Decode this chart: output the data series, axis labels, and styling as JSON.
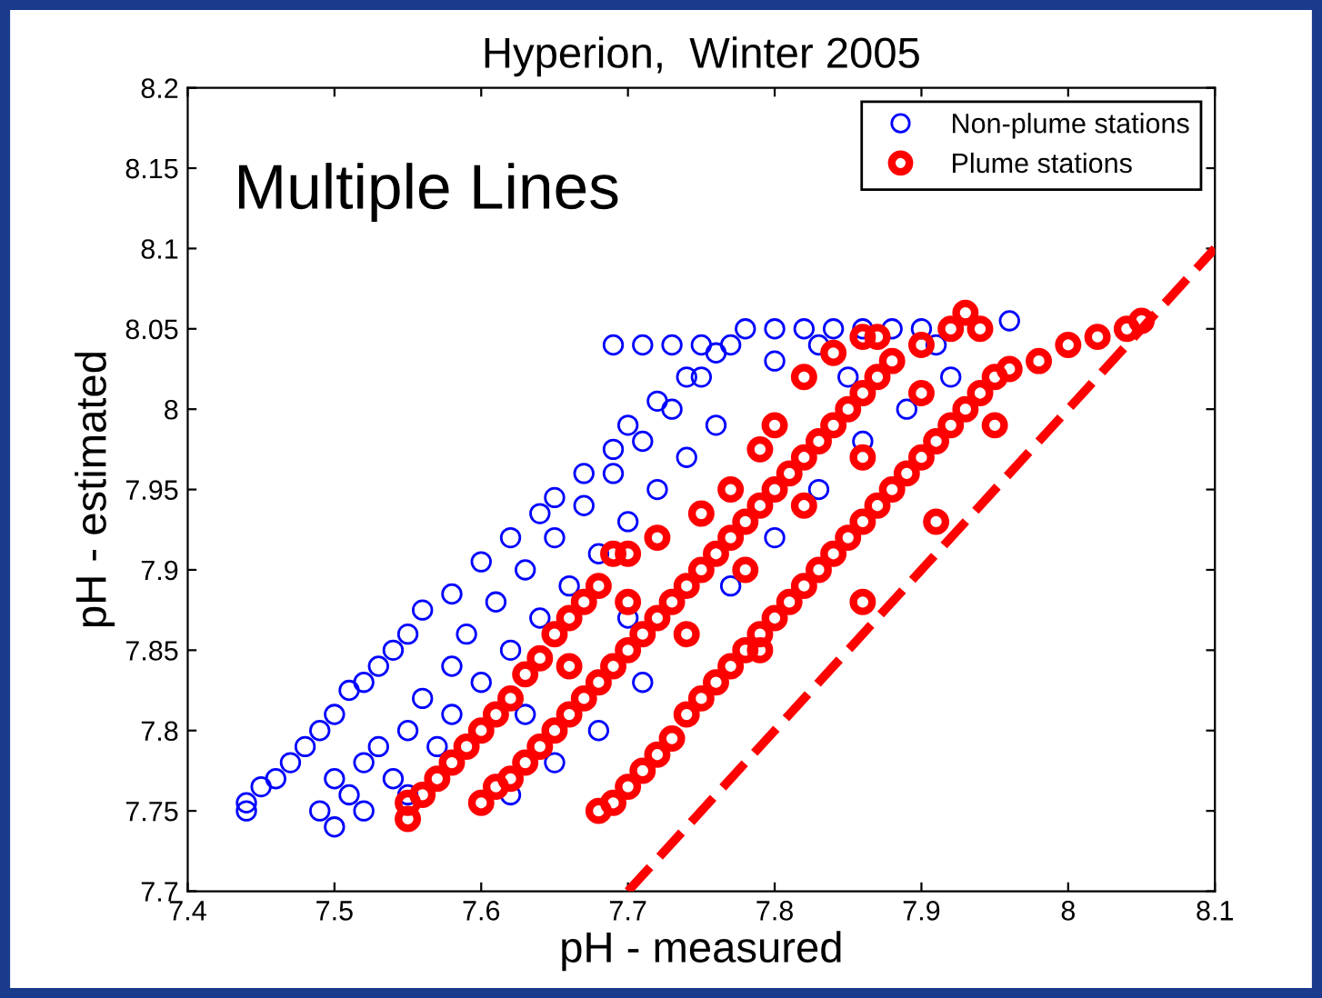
{
  "chart_data": {
    "type": "scatter",
    "title": "Hyperion,  Winter 2005",
    "xlabel": "pH - measured",
    "ylabel": "pH - estimated",
    "annotations": [
      "Multiple Lines"
    ],
    "xlim": [
      7.4,
      8.1
    ],
    "xticks": [
      7.4,
      7.5,
      7.6,
      7.7,
      7.8,
      7.9,
      8,
      8.1
    ],
    "ylim": [
      7.7,
      8.2
    ],
    "yticks": [
      7.7,
      7.75,
      7.8,
      7.85,
      7.9,
      7.95,
      8,
      8.05,
      8.1,
      8.15,
      8.2
    ],
    "grid": false,
    "legend": "top right",
    "marker": "circle",
    "series": [
      {
        "name": "Non-plume stations",
        "color": "#0000ff",
        "x": [
          7.44,
          7.44,
          7.45,
          7.46,
          7.47,
          7.48,
          7.49,
          7.5,
          7.51,
          7.52,
          7.53,
          7.54,
          7.55,
          7.56,
          7.58,
          7.6,
          7.62,
          7.64,
          7.65,
          7.67,
          7.69,
          7.7,
          7.72,
          7.74,
          7.76,
          7.69,
          7.71,
          7.73,
          7.75,
          7.49,
          7.5,
          7.5,
          7.51,
          7.52,
          7.52,
          7.53,
          7.54,
          7.55,
          7.55,
          7.56,
          7.57,
          7.58,
          7.58,
          7.59,
          7.6,
          7.61,
          7.62,
          7.63,
          7.64,
          7.65,
          7.66,
          7.67,
          7.68,
          7.69,
          7.7,
          7.71,
          7.72,
          7.73,
          7.74,
          7.75,
          7.76,
          7.77,
          7.78,
          7.8,
          7.82,
          7.84,
          7.86,
          7.88,
          7.9,
          7.96,
          7.8,
          7.83,
          7.85,
          7.91,
          7.62,
          7.65,
          7.68,
          7.71,
          7.77,
          7.8,
          7.83,
          7.86,
          7.89,
          7.92,
          7.63,
          7.7
        ],
        "values": [
          7.75,
          7.755,
          7.765,
          7.77,
          7.78,
          7.79,
          7.8,
          7.81,
          7.825,
          7.83,
          7.84,
          7.85,
          7.86,
          7.875,
          7.885,
          7.905,
          7.92,
          7.935,
          7.945,
          7.96,
          7.975,
          7.99,
          8.005,
          8.02,
          8.035,
          8.04,
          8.04,
          8.04,
          8.04,
          7.75,
          7.74,
          7.77,
          7.76,
          7.78,
          7.75,
          7.79,
          7.77,
          7.8,
          7.76,
          7.82,
          7.79,
          7.84,
          7.81,
          7.86,
          7.83,
          7.88,
          7.85,
          7.9,
          7.87,
          7.92,
          7.89,
          7.94,
          7.91,
          7.96,
          7.93,
          7.98,
          7.95,
          8.0,
          7.97,
          8.02,
          7.99,
          8.04,
          8.05,
          8.05,
          8.05,
          8.05,
          8.05,
          8.05,
          8.05,
          8.055,
          8.03,
          8.04,
          8.02,
          8.04,
          7.76,
          7.78,
          7.8,
          7.83,
          7.89,
          7.92,
          7.95,
          7.98,
          8.0,
          8.02,
          7.81,
          7.87
        ]
      },
      {
        "name": "Plume stations",
        "color": "#ff0000",
        "x": [
          7.55,
          7.55,
          7.56,
          7.57,
          7.58,
          7.59,
          7.6,
          7.61,
          7.62,
          7.63,
          7.64,
          7.65,
          7.66,
          7.67,
          7.68,
          7.69,
          7.7,
          7.72,
          7.75,
          7.77,
          7.79,
          7.8,
          7.82,
          7.84,
          7.86,
          7.87,
          7.6,
          7.61,
          7.62,
          7.63,
          7.64,
          7.65,
          7.66,
          7.67,
          7.68,
          7.69,
          7.7,
          7.71,
          7.72,
          7.73,
          7.74,
          7.75,
          7.76,
          7.77,
          7.78,
          7.79,
          7.8,
          7.81,
          7.82,
          7.83,
          7.84,
          7.85,
          7.86,
          7.87,
          7.88,
          7.9,
          7.92,
          7.93,
          7.94,
          7.7,
          7.74,
          7.78,
          7.82,
          7.86,
          7.9,
          7.66,
          7.68,
          7.69,
          7.7,
          7.71,
          7.72,
          7.73,
          7.74,
          7.75,
          7.76,
          7.77,
          7.78,
          7.79,
          7.8,
          7.81,
          7.82,
          7.83,
          7.84,
          7.85,
          7.86,
          7.87,
          7.88,
          7.89,
          7.9,
          7.91,
          7.92,
          7.93,
          7.94,
          7.95,
          7.96,
          7.98,
          8.0,
          8.02,
          8.04,
          8.05,
          7.86,
          7.79,
          7.91,
          7.95
        ],
        "values": [
          7.745,
          7.755,
          7.76,
          7.77,
          7.78,
          7.79,
          7.8,
          7.81,
          7.82,
          7.835,
          7.845,
          7.86,
          7.87,
          7.88,
          7.89,
          7.91,
          7.91,
          7.92,
          7.935,
          7.95,
          7.975,
          7.99,
          8.02,
          8.035,
          8.045,
          8.045,
          7.755,
          7.765,
          7.77,
          7.78,
          7.79,
          7.8,
          7.81,
          7.82,
          7.83,
          7.84,
          7.85,
          7.86,
          7.87,
          7.88,
          7.89,
          7.9,
          7.91,
          7.92,
          7.93,
          7.94,
          7.95,
          7.96,
          7.97,
          7.98,
          7.99,
          8.0,
          8.01,
          8.02,
          8.03,
          8.04,
          8.05,
          8.06,
          8.05,
          7.88,
          7.86,
          7.9,
          7.94,
          7.97,
          8.01,
          7.84,
          7.75,
          7.755,
          7.765,
          7.775,
          7.785,
          7.795,
          7.81,
          7.82,
          7.83,
          7.84,
          7.85,
          7.86,
          7.87,
          7.88,
          7.89,
          7.9,
          7.91,
          7.92,
          7.93,
          7.94,
          7.95,
          7.96,
          7.97,
          7.98,
          7.99,
          8.0,
          8.01,
          8.02,
          8.025,
          8.03,
          8.04,
          8.045,
          8.05,
          8.055,
          7.88,
          7.85,
          7.93,
          7.99
        ]
      },
      {
        "type": "line",
        "color": "#ff0000",
        "marker": "none",
        "line_style": "dashed",
        "x": [
          7.7,
          8.1
        ],
        "values": [
          7.7,
          8.1
        ]
      }
    ]
  }
}
